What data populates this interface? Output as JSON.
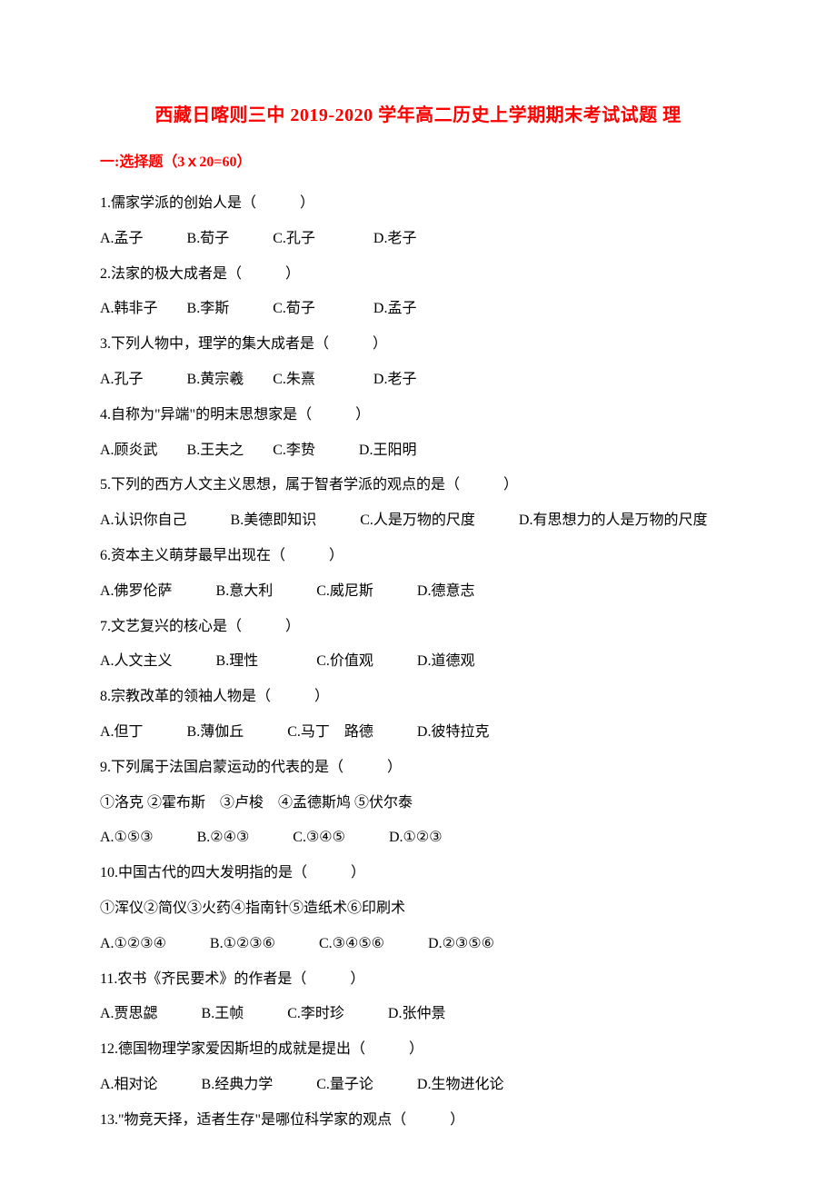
{
  "title": "西藏日喀则三中 2019-2020 学年高二历史上学期期末考试试题 理",
  "section_header": "一:选择题（3ｘ20=60）",
  "questions": [
    {
      "stem": "1.儒家学派的创始人是（　　　）",
      "options": "A.孟子　　　B.荀子　　　C.孔子　　　　D.老子"
    },
    {
      "stem": "2.法家的极大成者是（　　　）",
      "options": "A.韩非子　　B.李斯　　　C.荀子　　　　D.孟子"
    },
    {
      "stem": "3.下列人物中，理学的集大成者是（　　　）",
      "options": "A.孔子　　　B.黄宗羲　　C.朱熹　　　　D.老子"
    },
    {
      "stem": "4.自称为\"异端\"的明末思想家是（　　　）",
      "options": "A.顾炎武　　B.王夫之　　C.李贽　　　D.王阳明"
    },
    {
      "stem": "5.下列的西方人文主义思想，属于智者学派的观点的是（　　　）",
      "options": "A.认识你自己　　　B.美德即知识　　　C.人是万物的尺度　　　D.有思想力的人是万物的尺度"
    },
    {
      "stem": "6.资本主义萌芽最早出现在（　　　）",
      "options": "A.佛罗伦萨　　　B.意大利　　　C.威尼斯　　　D.德意志"
    },
    {
      "stem": "7.文艺复兴的核心是（　　　）",
      "options": "A.人文主义　　　B.理性　　　　C.价值观　　　D.道德观"
    },
    {
      "stem": "8.宗教改革的领袖人物是（　　　）",
      "options": "A.但丁　　　B.薄伽丘　　　C.马丁　路德　　　D.彼特拉克"
    },
    {
      "stem": "9.下列属于法国启蒙运动的代表的是（　　　）",
      "sub": "①洛克 ②霍布斯　③卢梭　④孟德斯鸠 ⑤伏尔泰",
      "options": "A.①⑤③　　　B.②④③　　　C.③④⑤　　　D.①②③"
    },
    {
      "stem": "10.中国古代的四大发明指的是（　　　）",
      "sub": "①浑仪②简仪③火药④指南针⑤造纸术⑥印刷术",
      "options": "A.①②③④　　　B.①②③⑥　　　C.③④⑤⑥　　　D.②③⑤⑥"
    },
    {
      "stem": "11.农书《齐民要术》的作者是（　　　）",
      "options": "A.贾思勰　　　B.王帧　　　C.李时珍　　　D.张仲景"
    },
    {
      "stem": "12.德国物理学家爱因斯坦的成就是提出（　　　）",
      "options": "A.相对论　　　B.经典力学　　　C.量子论　　　D.生物进化论"
    },
    {
      "stem": "13.\"物竞天择，适者生存\"是哪位科学家的观点（　　　）",
      "options": ""
    }
  ]
}
